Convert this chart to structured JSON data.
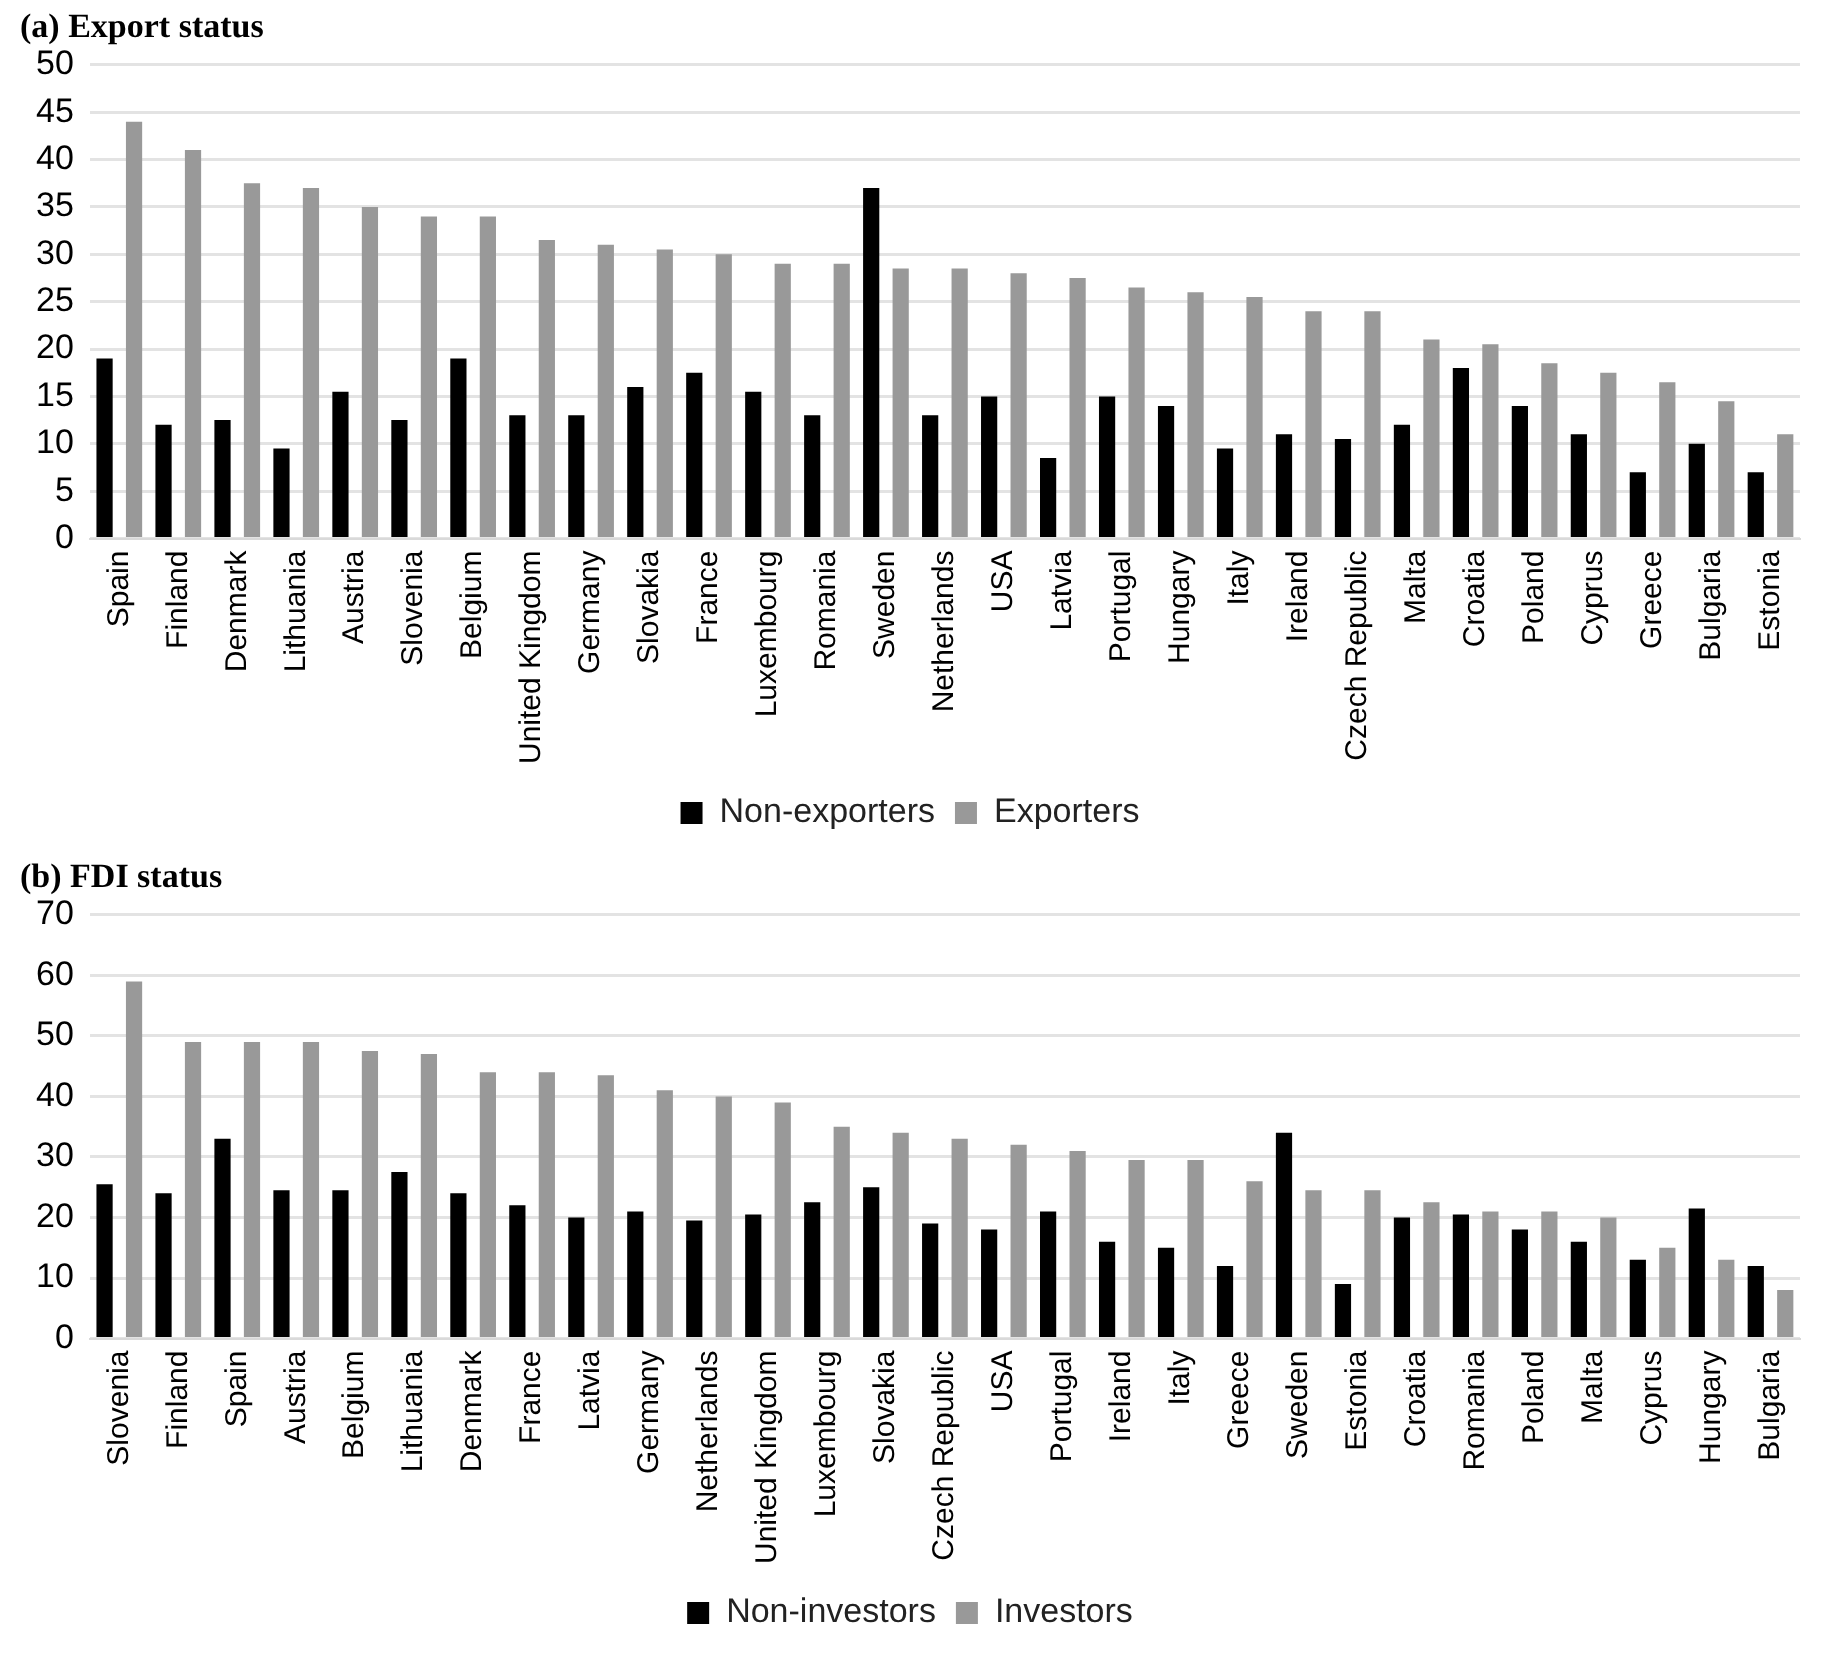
{
  "chart_data": [
    {
      "type": "bar",
      "title": "(a) Export status",
      "categories": [
        "Spain",
        "Finland",
        "Denmark",
        "Lithuania",
        "Austria",
        "Slovenia",
        "Belgium",
        "United Kingdom",
        "Germany",
        "Slovakia",
        "France",
        "Luxembourg",
        "Romania",
        "Sweden",
        "Netherlands",
        "USA",
        "Latvia",
        "Portugal",
        "Hungary",
        "Italy",
        "Ireland",
        "Czech Republic",
        "Malta",
        "Croatia",
        "Poland",
        "Cyprus",
        "Greece",
        "Bulgaria",
        "Estonia"
      ],
      "series": [
        {
          "name": "Non-exporters",
          "color": "#000000",
          "values": [
            19,
            12,
            12.5,
            9.5,
            15.5,
            12.5,
            19,
            13,
            13,
            16,
            17.5,
            15.5,
            13,
            37,
            13,
            15,
            8.5,
            15,
            14,
            9.5,
            11,
            10.5,
            12,
            18,
            14,
            11,
            7,
            10,
            7
          ]
        },
        {
          "name": "Exporters",
          "color": "#999999",
          "values": [
            44,
            41,
            37.5,
            37,
            35,
            34,
            34,
            31.5,
            31,
            30.5,
            30,
            29,
            29,
            28.5,
            28.5,
            28,
            27.5,
            26.5,
            26,
            25.5,
            24,
            24,
            21,
            20.5,
            18.5,
            17.5,
            16.5,
            14.5,
            11
          ]
        }
      ],
      "ylim": [
        0,
        50
      ],
      "yticks": [
        0,
        5,
        10,
        15,
        20,
        25,
        30,
        35,
        40,
        45,
        50
      ],
      "grid": "y",
      "legend": "bottom"
    },
    {
      "type": "bar",
      "title": "(b) FDI status",
      "categories": [
        "Slovenia",
        "Finland",
        "Spain",
        "Austria",
        "Belgium",
        "Lithuania",
        "Denmark",
        "France",
        "Latvia",
        "Germany",
        "Netherlands",
        "United Kingdom",
        "Luxembourg",
        "Slovakia",
        "Czech Republic",
        "USA",
        "Portugal",
        "Ireland",
        "Italy",
        "Greece",
        "Sweden",
        "Estonia",
        "Croatia",
        "Romania",
        "Poland",
        "Malta",
        "Cyprus",
        "Hungary",
        "Bulgaria"
      ],
      "series": [
        {
          "name": "Non-investors",
          "color": "#000000",
          "values": [
            25.5,
            24,
            33,
            24.5,
            24.5,
            27.5,
            24,
            22,
            20,
            21,
            19.5,
            20.5,
            22.5,
            25,
            19,
            18,
            21,
            16,
            15,
            12,
            34,
            9,
            20,
            20.5,
            18,
            16,
            13,
            21.5,
            12
          ]
        },
        {
          "name": "Investors",
          "color": "#999999",
          "values": [
            59,
            49,
            49,
            49,
            47.5,
            47,
            44,
            44,
            43.5,
            41,
            40,
            39,
            35,
            34,
            33,
            32,
            31,
            29.5,
            29.5,
            26,
            24.5,
            24.5,
            22.5,
            21,
            21,
            20,
            15,
            13,
            8
          ]
        }
      ],
      "ylim": [
        0,
        70
      ],
      "yticks": [
        0,
        10,
        20,
        30,
        40,
        50,
        60,
        70
      ],
      "grid": "y",
      "legend": "bottom"
    }
  ]
}
